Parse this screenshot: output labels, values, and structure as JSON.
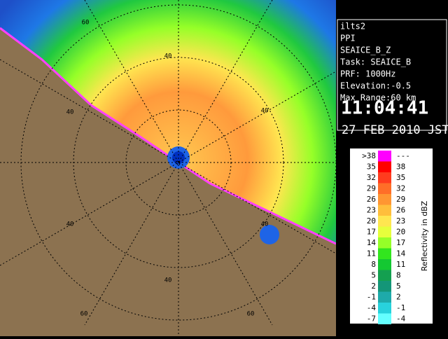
{
  "info": {
    "lines": [
      "ilts2",
      "PPI",
      "SEAICE_B_Z",
      "Task: SEAICE_B",
      "PRF: 1000Hz",
      "Elevation:-0.5",
      "Max Range:60 km"
    ],
    "time": "11:04:41",
    "date": "27 FEB 2010 JST"
  },
  "range_labels": [
    "60",
    "40",
    "40",
    "40",
    "40",
    "40",
    "40",
    "60",
    "60"
  ],
  "legend": {
    "title": "Reflectivity in dBZ",
    "rows": [
      {
        "low": ">38",
        "high": "---",
        "color": "#ff00ff"
      },
      {
        "low": "35",
        "high": "38",
        "color": "#ff0000"
      },
      {
        "low": "32",
        "high": "35",
        "color": "#ff3c1e"
      },
      {
        "low": "29",
        "high": "32",
        "color": "#ff6e28"
      },
      {
        "low": "26",
        "high": "29",
        "color": "#ff9632"
      },
      {
        "low": "23",
        "high": "26",
        "color": "#ffbe3c"
      },
      {
        "low": "20",
        "high": "23",
        "color": "#ffe650"
      },
      {
        "low": "17",
        "high": "20",
        "color": "#e6ff3c"
      },
      {
        "low": "14",
        "high": "17",
        "color": "#96ff28"
      },
      {
        "low": "11",
        "high": "14",
        "color": "#32e61e"
      },
      {
        "low": "8",
        "high": "11",
        "color": "#14c832"
      },
      {
        "low": "5",
        "high": "8",
        "color": "#14a050"
      },
      {
        "low": "2",
        "high": "5",
        "color": "#149678"
      },
      {
        "low": "-1",
        "high": "2",
        "color": "#1eaaaa"
      },
      {
        "low": "-4",
        "high": "-1",
        "color": "#28d2dc"
      },
      {
        "low": "-7",
        "high": "-4",
        "color": "#64ffff"
      }
    ]
  }
}
